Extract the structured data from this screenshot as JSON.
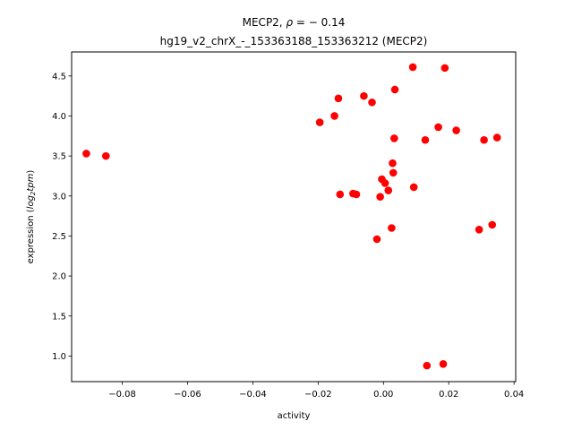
{
  "chart_data": {
    "type": "scatter",
    "title_line1_prefix": "MECP2, ",
    "title_rho_symbol": "ρ",
    "title_rho_value": " = − 0.14",
    "title_line2": "hg19_v2_chrX_-_153363188_153363212 (MECP2)",
    "xlabel": "activity",
    "ylabel_prefix": "expression (",
    "ylabel_log": "log",
    "ylabel_sub": "2",
    "ylabel_tpm": "tpm",
    "ylabel_suffix": ")",
    "xlim": [
      -0.0955,
      0.0405
    ],
    "ylim": [
      0.68,
      4.8
    ],
    "xticks": [
      -0.08,
      -0.06,
      -0.04,
      -0.02,
      0.0,
      0.02,
      0.04
    ],
    "xtick_labels": [
      "−0.08",
      "−0.06",
      "−0.04",
      "−0.02",
      "0.00",
      "0.02",
      "0.04"
    ],
    "yticks": [
      1.0,
      1.5,
      2.0,
      2.5,
      3.0,
      3.5,
      4.0,
      4.5
    ],
    "ytick_labels": [
      "1.0",
      "1.5",
      "2.0",
      "2.5",
      "3.0",
      "3.5",
      "4.0",
      "4.5"
    ],
    "marker_color": "#ff0000",
    "points": [
      {
        "x": -0.091,
        "y": 3.53
      },
      {
        "x": -0.085,
        "y": 3.5
      },
      {
        "x": -0.0195,
        "y": 3.92
      },
      {
        "x": -0.015,
        "y": 4.0
      },
      {
        "x": -0.0138,
        "y": 4.22
      },
      {
        "x": -0.0133,
        "y": 3.02
      },
      {
        "x": -0.0093,
        "y": 3.03
      },
      {
        "x": -0.0083,
        "y": 3.02
      },
      {
        "x": -0.006,
        "y": 4.25
      },
      {
        "x": -0.0035,
        "y": 4.17
      },
      {
        "x": -0.002,
        "y": 2.46
      },
      {
        "x": -0.001,
        "y": 2.99
      },
      {
        "x": -0.0005,
        "y": 3.21
      },
      {
        "x": 0.0005,
        "y": 3.16
      },
      {
        "x": 0.0015,
        "y": 3.07
      },
      {
        "x": 0.0025,
        "y": 2.6
      },
      {
        "x": 0.0028,
        "y": 3.41
      },
      {
        "x": 0.003,
        "y": 3.29
      },
      {
        "x": 0.0033,
        "y": 3.72
      },
      {
        "x": 0.0035,
        "y": 4.33
      },
      {
        "x": 0.009,
        "y": 4.61
      },
      {
        "x": 0.0093,
        "y": 3.11
      },
      {
        "x": 0.0128,
        "y": 3.7
      },
      {
        "x": 0.0133,
        "y": 0.88
      },
      {
        "x": 0.0168,
        "y": 3.86
      },
      {
        "x": 0.0183,
        "y": 0.9
      },
      {
        "x": 0.0188,
        "y": 4.6
      },
      {
        "x": 0.0223,
        "y": 3.82
      },
      {
        "x": 0.0293,
        "y": 2.58
      },
      {
        "x": 0.0308,
        "y": 3.7
      },
      {
        "x": 0.0333,
        "y": 2.64
      },
      {
        "x": 0.0348,
        "y": 3.73
      }
    ],
    "legend": "none",
    "grid": false
  }
}
